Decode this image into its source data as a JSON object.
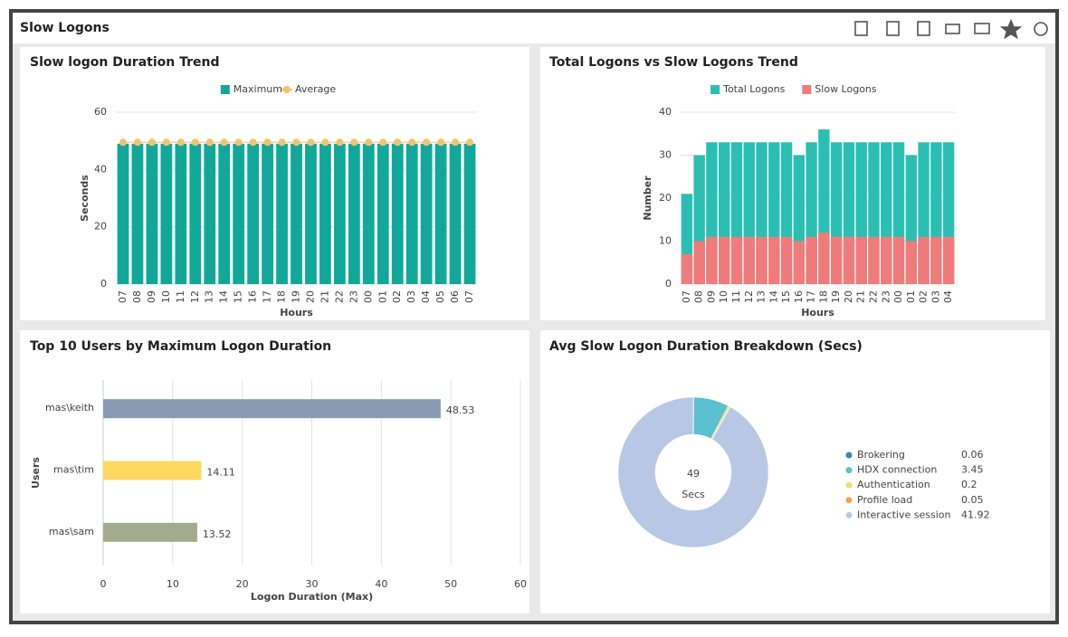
{
  "header": {
    "title": "Slow Logons"
  },
  "chart_data": [
    {
      "type": "bar",
      "title": "Slow logon Duration Trend",
      "x_label": "Hours",
      "y_label": "Seconds",
      "categories": [
        "07",
        "08",
        "09",
        "10",
        "11",
        "12",
        "13",
        "14",
        "15",
        "16",
        "17",
        "18",
        "19",
        "20",
        "21",
        "22",
        "23",
        "00",
        "01",
        "02",
        "03",
        "04",
        "05",
        "06",
        "07"
      ],
      "series": [
        {
          "name": "Maximum",
          "type": "bar",
          "color": "#11a89a",
          "values": [
            49,
            49,
            49,
            49,
            49,
            49,
            49,
            49,
            49,
            49,
            49,
            49,
            49,
            49,
            49,
            49,
            49,
            49,
            49,
            49,
            49,
            49,
            49,
            49,
            49
          ]
        },
        {
          "name": "Average",
          "type": "line",
          "color": "#f5c26b",
          "values": [
            49.5,
            49.5,
            49.5,
            49.5,
            49.5,
            49.5,
            49.5,
            49.5,
            49.5,
            49.5,
            49.5,
            49.5,
            49.5,
            49.5,
            49.5,
            49.5,
            49.5,
            49.5,
            49.5,
            49.5,
            49.5,
            49.5,
            49.5,
            49.5,
            49.5
          ]
        }
      ],
      "ylim": [
        0,
        60
      ],
      "yticks": [
        0,
        20,
        40,
        60
      ],
      "grid": true,
      "legend": "top"
    },
    {
      "type": "overlap-bar",
      "title": "Total Logons vs Slow Logons Trend",
      "x_label": "Hours",
      "y_label": "Number",
      "categories": [
        "07",
        "08",
        "09",
        "10",
        "11",
        "12",
        "13",
        "14",
        "15",
        "16",
        "17",
        "18",
        "19",
        "20",
        "21",
        "22",
        "23",
        "00",
        "01",
        "02",
        "03",
        "04"
      ],
      "series": [
        {
          "name": "Total Logons",
          "color": "#2bbfb3",
          "values": [
            21,
            30,
            33,
            33,
            33,
            33,
            33,
            33,
            33,
            30,
            33,
            36,
            33,
            33,
            33,
            33,
            33,
            33,
            30,
            33,
            33,
            33
          ]
        },
        {
          "name": "Slow Logons",
          "color": "#f07b7b",
          "values": [
            7,
            10,
            11,
            11,
            11,
            11,
            11,
            11,
            11,
            10,
            11,
            12,
            11,
            11,
            11,
            11,
            11,
            11,
            10,
            11,
            11,
            11
          ]
        }
      ],
      "ylim": [
        0,
        40
      ],
      "yticks": [
        0,
        10,
        20,
        30,
        40
      ],
      "grid": true,
      "legend": "top"
    },
    {
      "type": "hbar",
      "title": "Top 10 Users by Maximum Logon Duration",
      "x_label": "Logon Duration (Max)",
      "y_label": "Users",
      "categories": [
        "mas\\keith",
        "mas\\tim",
        "mas\\sam"
      ],
      "values": [
        48.53,
        14.11,
        13.52
      ],
      "colors": [
        "#8a9cb4",
        "#fdd960",
        "#a3ab8e"
      ],
      "xlim": [
        0,
        60
      ],
      "xticks": [
        0,
        10,
        20,
        30,
        40,
        50,
        60
      ],
      "grid": true
    },
    {
      "type": "donut",
      "title": "Avg Slow Logon Duration Breakdown (Secs)",
      "center_value": 49,
      "center_label": "Secs",
      "categories": [
        "Brokering",
        "HDX connection",
        "Authentication",
        "Profile load",
        "Interactive session"
      ],
      "values": [
        0.06,
        3.45,
        0.2,
        0.05,
        41.92
      ],
      "colors": [
        "#3a87b5",
        "#5bc0d0",
        "#f7dc6f",
        "#f0a640",
        "#b8c8e4"
      ],
      "legend": "right"
    }
  ]
}
